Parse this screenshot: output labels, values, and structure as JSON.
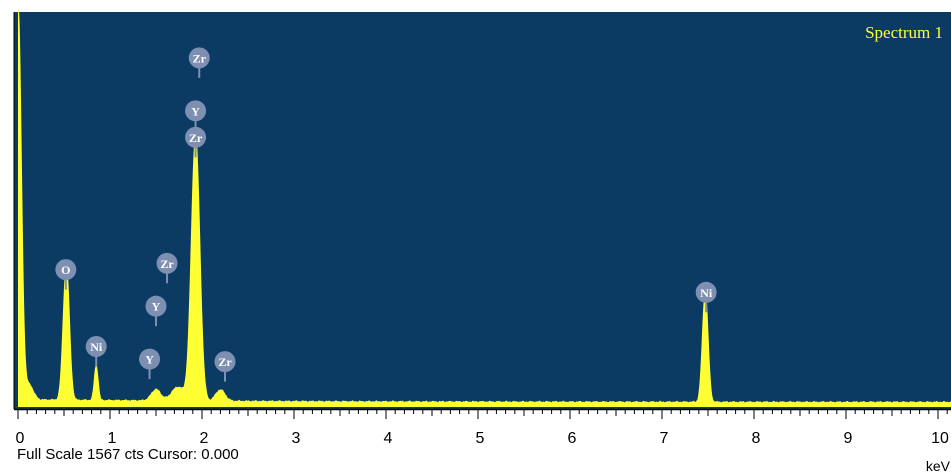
{
  "chart_data": {
    "type": "area",
    "title": "Spectrum 1",
    "xlabel": "keV",
    "xlim": [
      0,
      10
    ],
    "ylim": [
      0,
      1567
    ],
    "x_ticks": [
      "0",
      "1",
      "2",
      "3",
      "4",
      "5",
      "6",
      "7",
      "8",
      "9",
      "10"
    ],
    "peaks": [
      {
        "center": 0.0,
        "height": 1567,
        "width": 0.035
      },
      {
        "center": 0.525,
        "height": 530,
        "width": 0.033
      },
      {
        "center": 0.85,
        "height": 135,
        "width": 0.02
      },
      {
        "center": 1.5,
        "height": 45,
        "width": 0.05
      },
      {
        "center": 1.74,
        "height": 55,
        "width": 0.07
      },
      {
        "center": 1.93,
        "height": 1045,
        "width": 0.045
      },
      {
        "center": 2.2,
        "height": 45,
        "width": 0.05
      },
      {
        "center": 7.47,
        "height": 430,
        "width": 0.03
      }
    ],
    "background_counts": 18,
    "peak_labels": [
      {
        "text": "O",
        "energy": 0.52,
        "counts": 545
      },
      {
        "text": "Ni",
        "energy": 0.85,
        "counts": 240
      },
      {
        "text": "Y",
        "energy": 1.43,
        "counts": 190
      },
      {
        "text": "Y",
        "energy": 1.5,
        "counts": 400
      },
      {
        "text": "Zr",
        "energy": 1.62,
        "counts": 570
      },
      {
        "text": "Zr",
        "energy": 2.25,
        "counts": 180
      },
      {
        "text": "Zr",
        "energy": 1.93,
        "counts": 1070
      },
      {
        "text": "Y",
        "energy": 1.93,
        "counts": 1175
      },
      {
        "text": "Zr",
        "energy": 1.97,
        "counts": 1385
      },
      {
        "text": "Ni",
        "energy": 7.48,
        "counts": 455
      }
    ]
  },
  "status": {
    "text": "Full Scale 1567 cts Cursor: 0.000"
  },
  "colors": {
    "plot_bg": "#0b3a63",
    "spectrum": "#ffff33",
    "label_circle": "#7e90b2",
    "label_text": "#ffffff",
    "title_text": "#ffff33"
  }
}
